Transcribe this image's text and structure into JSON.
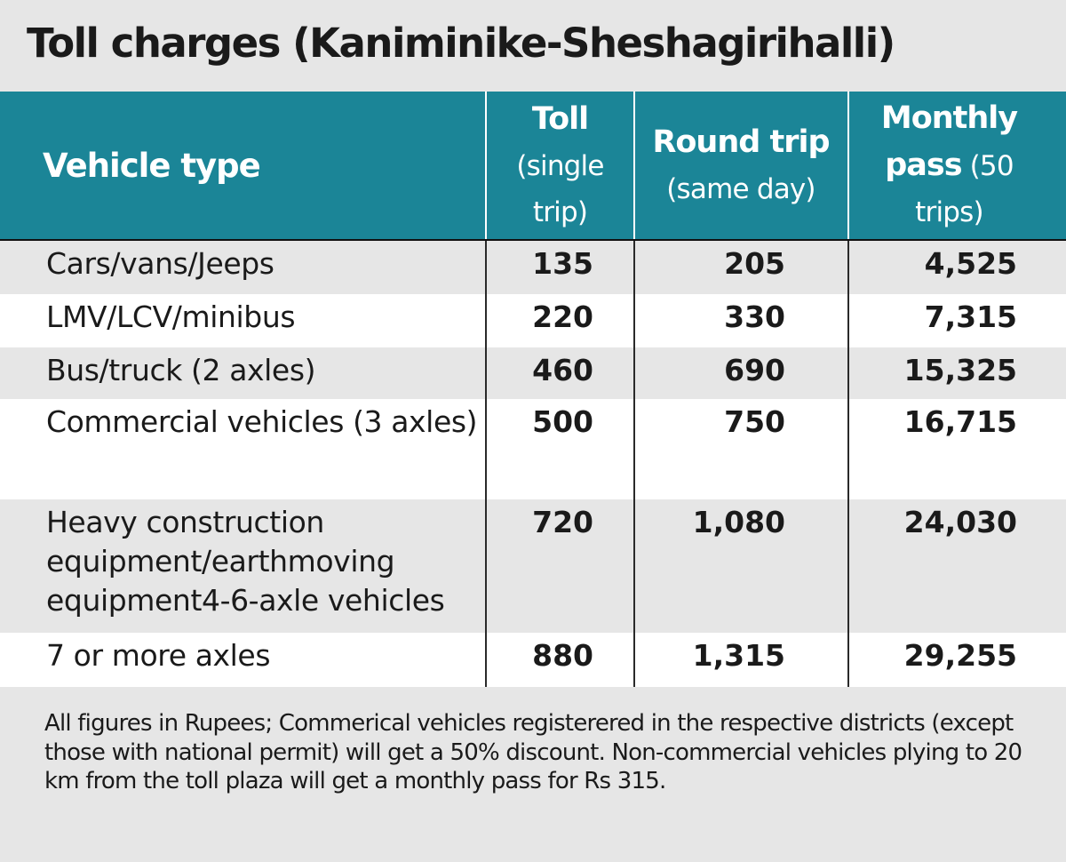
{
  "chart_data": {
    "type": "table",
    "title": "Toll charges (Kaniminike-Sheshagirihalli)",
    "columns": [
      {
        "bold": "Vehicle type",
        "rest": ""
      },
      {
        "bold": "Toll",
        "rest": "(single trip)"
      },
      {
        "bold": "Round trip",
        "rest": "(same day)"
      },
      {
        "bold": "Monthly pass",
        "rest": "(50 trips)"
      }
    ],
    "rows": [
      {
        "vehicle": "Cars/vans/Jeeps",
        "toll": "135",
        "round_trip": "205",
        "monthly_pass": "4,525"
      },
      {
        "vehicle": "LMV/LCV/minibus",
        "toll": "220",
        "round_trip": "330",
        "monthly_pass": "7,315"
      },
      {
        "vehicle": "Bus/truck (2 axles)",
        "toll": "460",
        "round_trip": "690",
        "monthly_pass": "15,325"
      },
      {
        "vehicle": "Commercial vehicles (3 axles)",
        "toll": "500",
        "round_trip": "750",
        "monthly_pass": "16,715"
      },
      {
        "vehicle": "Heavy construction equipment/earthmoving equipment4-6-axle vehicles",
        "toll": "720",
        "round_trip": "1,080",
        "monthly_pass": "24,030"
      },
      {
        "vehicle": "7 or more axles",
        "toll": "880",
        "round_trip": "1,315",
        "monthly_pass": "29,255"
      }
    ],
    "footnote": "All figures in Rupees; Commerical vehicles registerered in the respective districts (except those with national permit) will get a 50% discount. Non-commercial vehicles plying to 20 km from the toll plaza will get a monthly pass for Rs 315."
  },
  "colors": {
    "header_background": "#1b8597",
    "header_text": "#ffffff",
    "page_background": "#e6e6e6",
    "alt_row_background": "#ffffff"
  }
}
